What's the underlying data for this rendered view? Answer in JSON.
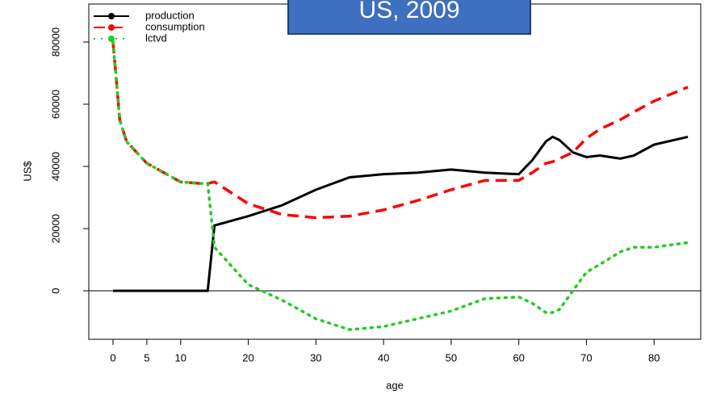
{
  "chart_data": {
    "type": "line",
    "title": "US, 2009",
    "xlabel": "age",
    "ylabel": "US$",
    "x": [
      0,
      1,
      2,
      5,
      10,
      13,
      14,
      15,
      20,
      25,
      30,
      35,
      40,
      45,
      50,
      55,
      60,
      62,
      64,
      65,
      66,
      68,
      70,
      72,
      75,
      77,
      80,
      85
    ],
    "series": [
      {
        "name": "production",
        "color": "#000000",
        "dash": "solid",
        "values": [
          0,
          0,
          0,
          0,
          0,
          0,
          0,
          21000,
          24000,
          27500,
          32500,
          36500,
          37500,
          38000,
          39000,
          38000,
          37500,
          42000,
          48000,
          49500,
          48500,
          44500,
          43000,
          43500,
          42500,
          43500,
          47000,
          49500
        ]
      },
      {
        "name": "consumption",
        "color": "#ff0000",
        "dash": "dashed",
        "values": [
          80000,
          55000,
          48000,
          41000,
          35000,
          34500,
          34500,
          35000,
          28000,
          24500,
          23500,
          24000,
          26000,
          29000,
          32500,
          35500,
          35500,
          38000,
          41000,
          41500,
          42500,
          44500,
          49000,
          52000,
          55000,
          57500,
          61000,
          65500
        ]
      },
      {
        "name": "lctvd",
        "color": "#22cc22",
        "dash": "dotted",
        "values": [
          80000,
          55000,
          48000,
          41000,
          35000,
          34500,
          34500,
          14000,
          2000,
          -3000,
          -9000,
          -12500,
          -11500,
          -9000,
          -6500,
          -2500,
          -2000,
          -4000,
          -7000,
          -7000,
          -6000,
          0,
          6000,
          8500,
          12500,
          14000,
          14000,
          15500
        ]
      }
    ],
    "xlim": [
      -3.58,
      86.9
    ],
    "ylim": [
      -15584,
      92208
    ],
    "xticks": [
      0,
      5,
      10,
      20,
      30,
      40,
      50,
      60,
      70,
      80
    ],
    "yticks": [
      0,
      20000,
      40000,
      60000,
      80000
    ],
    "hline": 0,
    "legend": "top-left"
  }
}
